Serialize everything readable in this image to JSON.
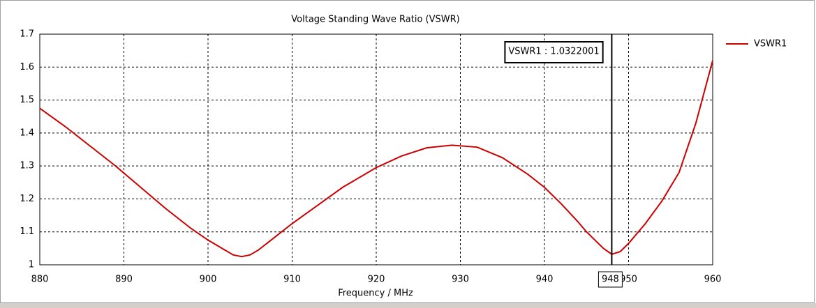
{
  "chart_data": {
    "type": "line",
    "title": "Voltage Standing Wave Ratio (VSWR)",
    "x_label": "Frequency / MHz",
    "x": [
      880,
      883,
      886,
      889,
      892,
      895,
      898,
      900,
      902,
      903,
      904,
      905,
      906,
      908,
      910,
      913,
      916,
      920,
      923,
      926,
      929,
      932,
      935,
      938,
      940,
      942,
      944,
      945,
      946,
      947,
      948,
      949,
      950,
      952,
      954,
      956,
      958,
      960
    ],
    "series": [
      {
        "name": "VSWR1",
        "color": "#cc0000",
        "values": [
          1.475,
          1.42,
          1.36,
          1.3,
          1.235,
          1.17,
          1.11,
          1.075,
          1.045,
          1.03,
          1.025,
          1.03,
          1.045,
          1.085,
          1.125,
          1.18,
          1.235,
          1.295,
          1.33,
          1.355,
          1.363,
          1.357,
          1.325,
          1.275,
          1.235,
          1.185,
          1.13,
          1.1,
          1.075,
          1.05,
          1.032,
          1.04,
          1.065,
          1.125,
          1.195,
          1.28,
          1.43,
          1.62
        ]
      }
    ],
    "xlim": [
      880,
      960
    ],
    "xticks": [
      880,
      890,
      900,
      910,
      920,
      930,
      940,
      950,
      960
    ],
    "ylim": [
      1,
      1.7
    ],
    "yticks": [
      1,
      1.1,
      1.2,
      1.3,
      1.4,
      1.5,
      1.6,
      1.7
    ],
    "grid": true,
    "legend": "right",
    "marker": {
      "x": 948,
      "y": 1.0322001,
      "label": "VSWR1 : 1.0322001"
    }
  }
}
